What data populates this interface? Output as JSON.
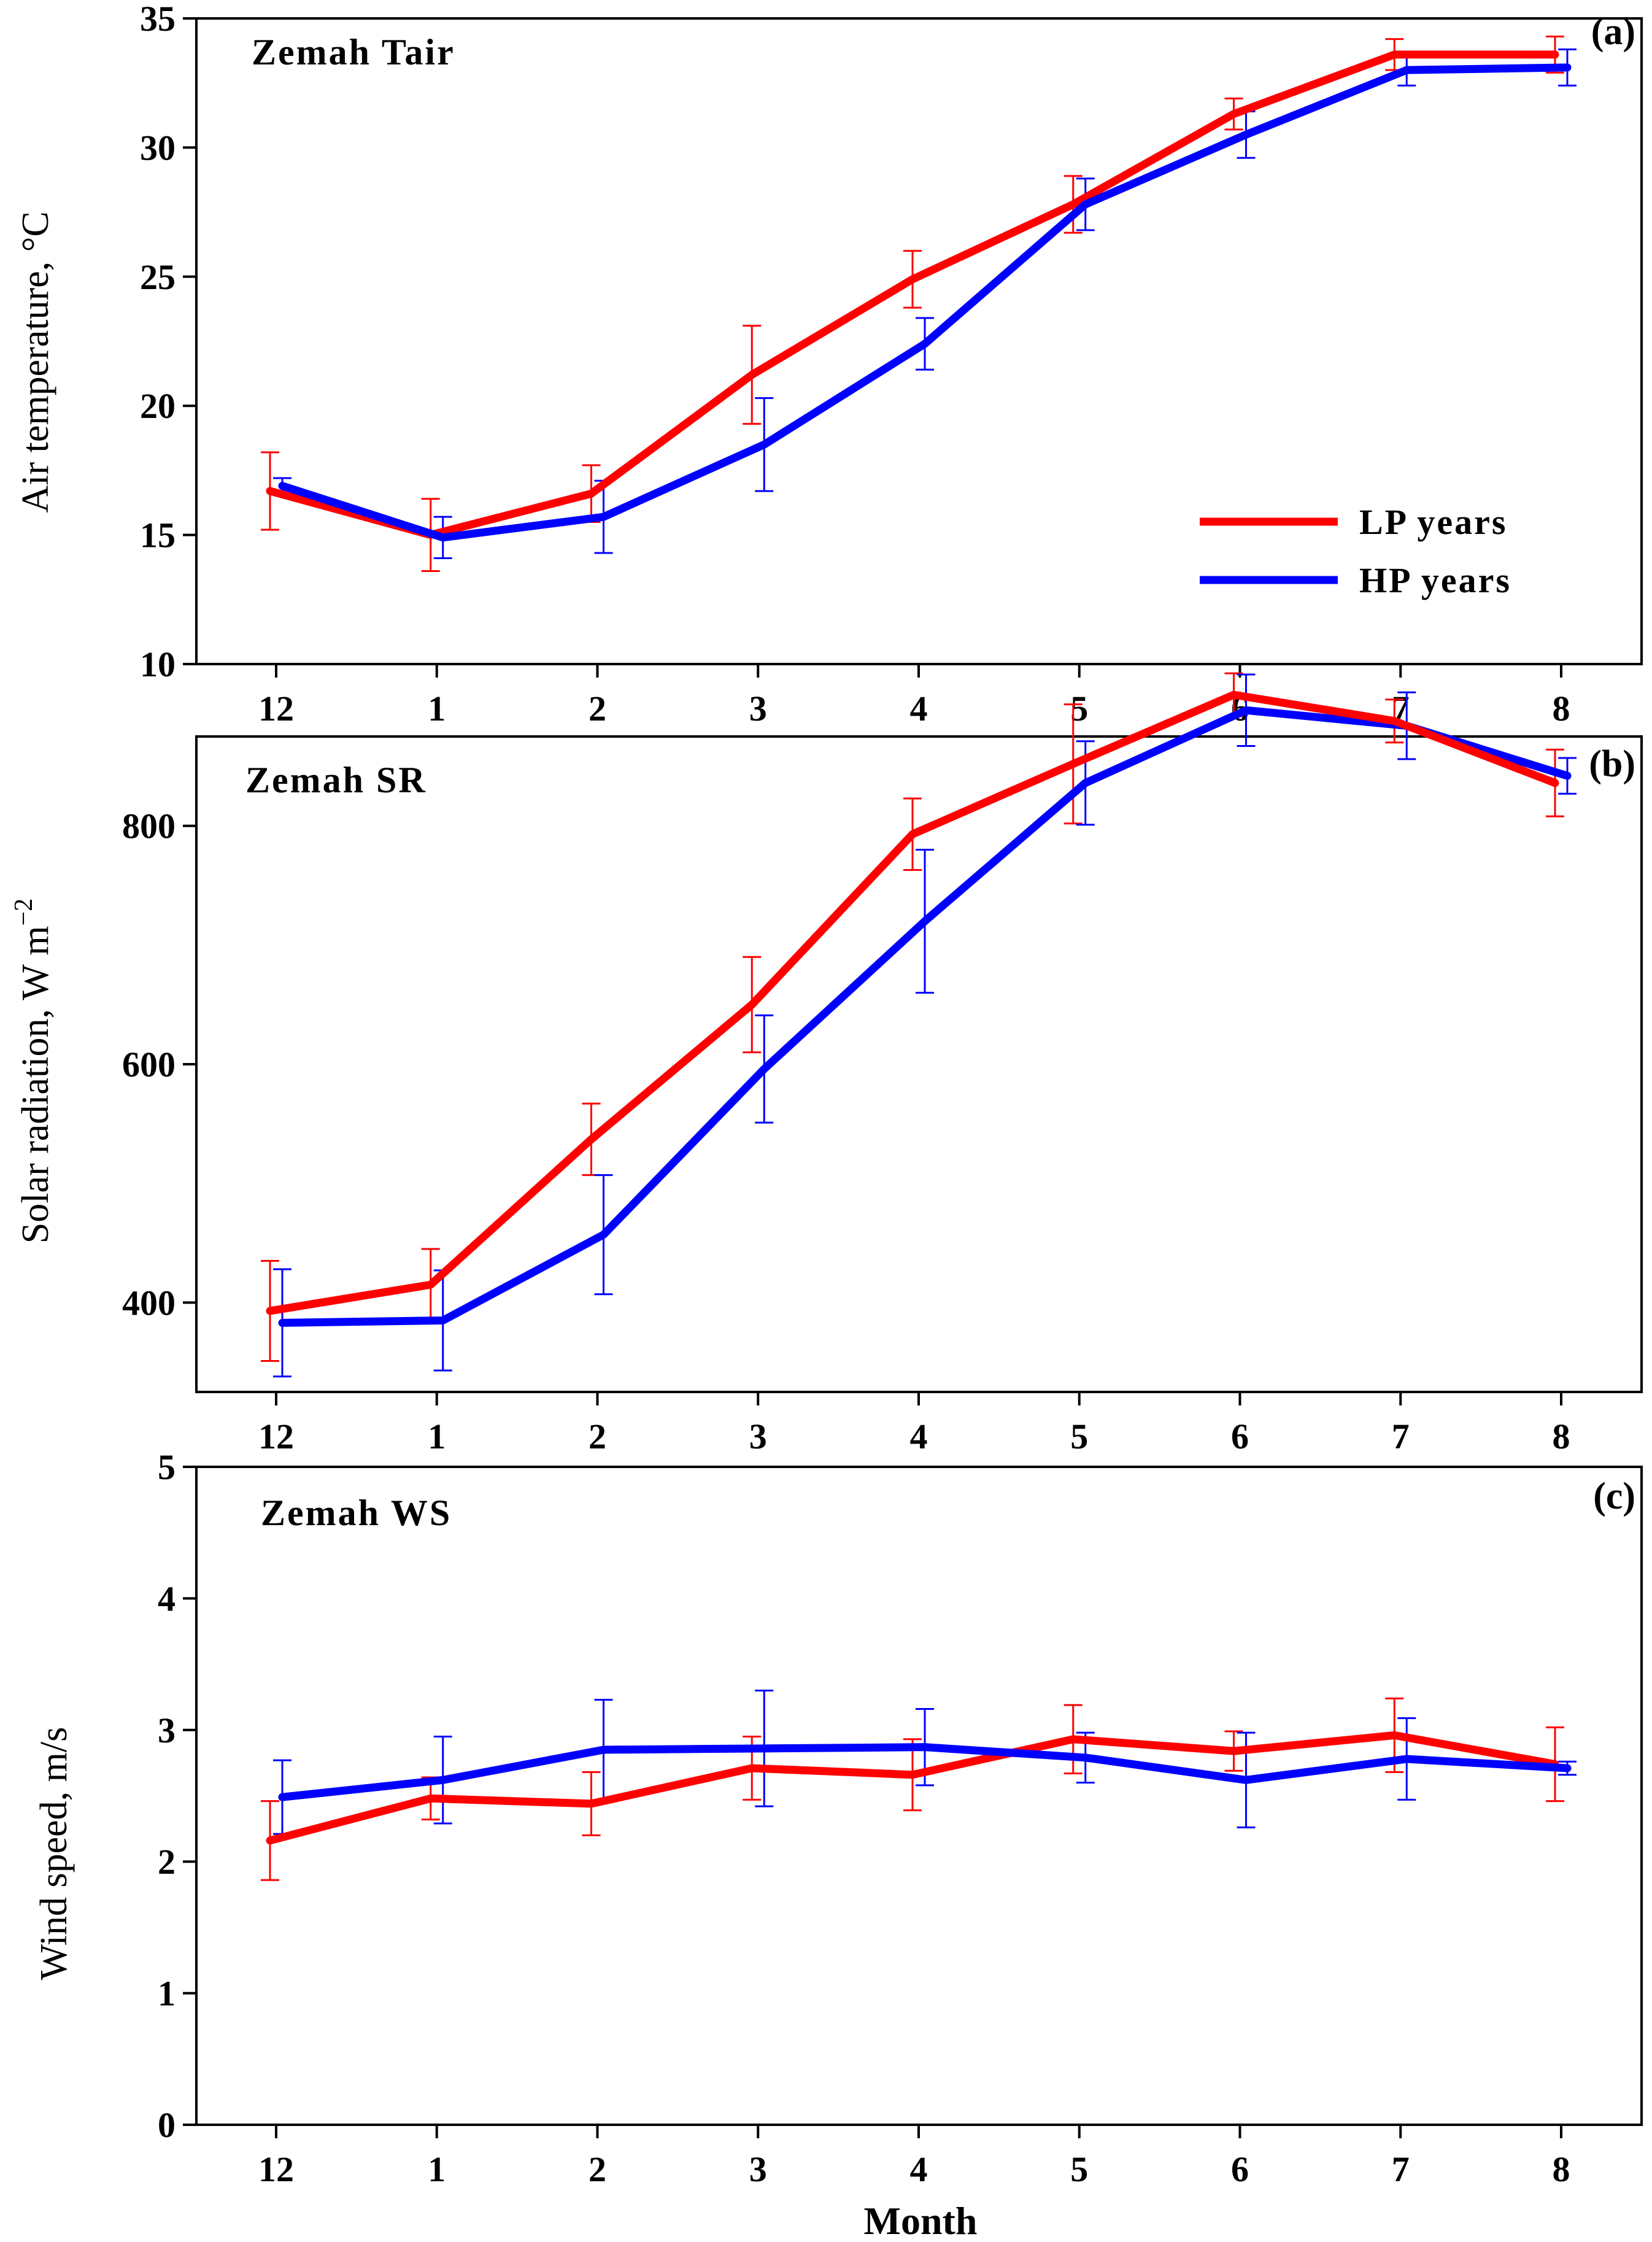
{
  "chart_data": [
    {
      "id": "a",
      "type": "line",
      "title": "Zemah  Tair",
      "panel_label": "(a)",
      "xlabel": "",
      "ylabel": "Air temperature, °C",
      "categories": [
        "12",
        "1",
        "2",
        "3",
        "4",
        "5",
        "6",
        "7",
        "8"
      ],
      "ylim": [
        10,
        35
      ],
      "yticks": [
        10,
        15,
        20,
        25,
        30,
        35
      ],
      "legend_position": "lower-right",
      "series": [
        {
          "name": "LP  years",
          "color": "#ff0000",
          "values": [
            16.7,
            15.0,
            16.6,
            21.2,
            24.9,
            27.8,
            31.3,
            33.6,
            33.6
          ],
          "errors": [
            1.5,
            1.4,
            1.1,
            1.9,
            1.1,
            1.1,
            0.6,
            0.6,
            0.7
          ]
        },
        {
          "name": "HP  years",
          "color": "#0000ff",
          "values": [
            16.9,
            14.9,
            15.7,
            18.5,
            22.4,
            27.8,
            30.5,
            33.0,
            33.1
          ],
          "errors": [
            0.3,
            0.8,
            1.4,
            1.8,
            1.0,
            1.0,
            0.9,
            0.6,
            0.7
          ]
        }
      ]
    },
    {
      "id": "b",
      "type": "line",
      "title": "Zemah  SR",
      "panel_label": "(b)",
      "xlabel": "",
      "ylabel": "Solar radiation, W m",
      "ylabel_sup": "−2",
      "categories": [
        "12",
        "1",
        "2",
        "3",
        "4",
        "5",
        "6",
        "7",
        "8"
      ],
      "ylim": [
        325,
        875
      ],
      "yticks": [
        400,
        600,
        800
      ],
      "series": [
        {
          "name": "LP years",
          "color": "#ff0000",
          "values": [
            393,
            415,
            537,
            650,
            793,
            852,
            910,
            888,
            836
          ],
          "errors": [
            42,
            30,
            30,
            40,
            30,
            50,
            18,
            18,
            28
          ]
        },
        {
          "name": "HP years",
          "color": "#0000ff",
          "values": [
            383,
            385,
            457,
            596,
            720,
            836,
            897,
            884,
            842
          ],
          "errors": [
            45,
            42,
            50,
            45,
            60,
            35,
            30,
            28,
            15
          ]
        }
      ]
    },
    {
      "id": "c",
      "type": "line",
      "title": "Zemah  WS",
      "panel_label": "(c)",
      "xlabel": "Month",
      "ylabel": "Wind speed, m/s",
      "categories": [
        "12",
        "1",
        "2",
        "3",
        "4",
        "5",
        "6",
        "7",
        "8"
      ],
      "ylim": [
        0,
        5
      ],
      "yticks": [
        0,
        1,
        2,
        3,
        4,
        5
      ],
      "series": [
        {
          "name": "LP years",
          "color": "#ff0000",
          "values": [
            2.16,
            2.48,
            2.44,
            2.71,
            2.66,
            2.93,
            2.84,
            2.96,
            2.74
          ],
          "errors": [
            0.3,
            0.16,
            0.24,
            0.24,
            0.27,
            0.26,
            0.15,
            0.28,
            0.28
          ]
        },
        {
          "name": "HP years",
          "color": "#0000ff",
          "values": [
            2.49,
            2.62,
            2.85,
            2.86,
            2.87,
            2.79,
            2.62,
            2.78,
            2.71
          ],
          "errors": [
            0.28,
            0.33,
            0.38,
            0.44,
            0.29,
            0.19,
            0.36,
            0.31,
            0.05
          ]
        }
      ]
    }
  ]
}
